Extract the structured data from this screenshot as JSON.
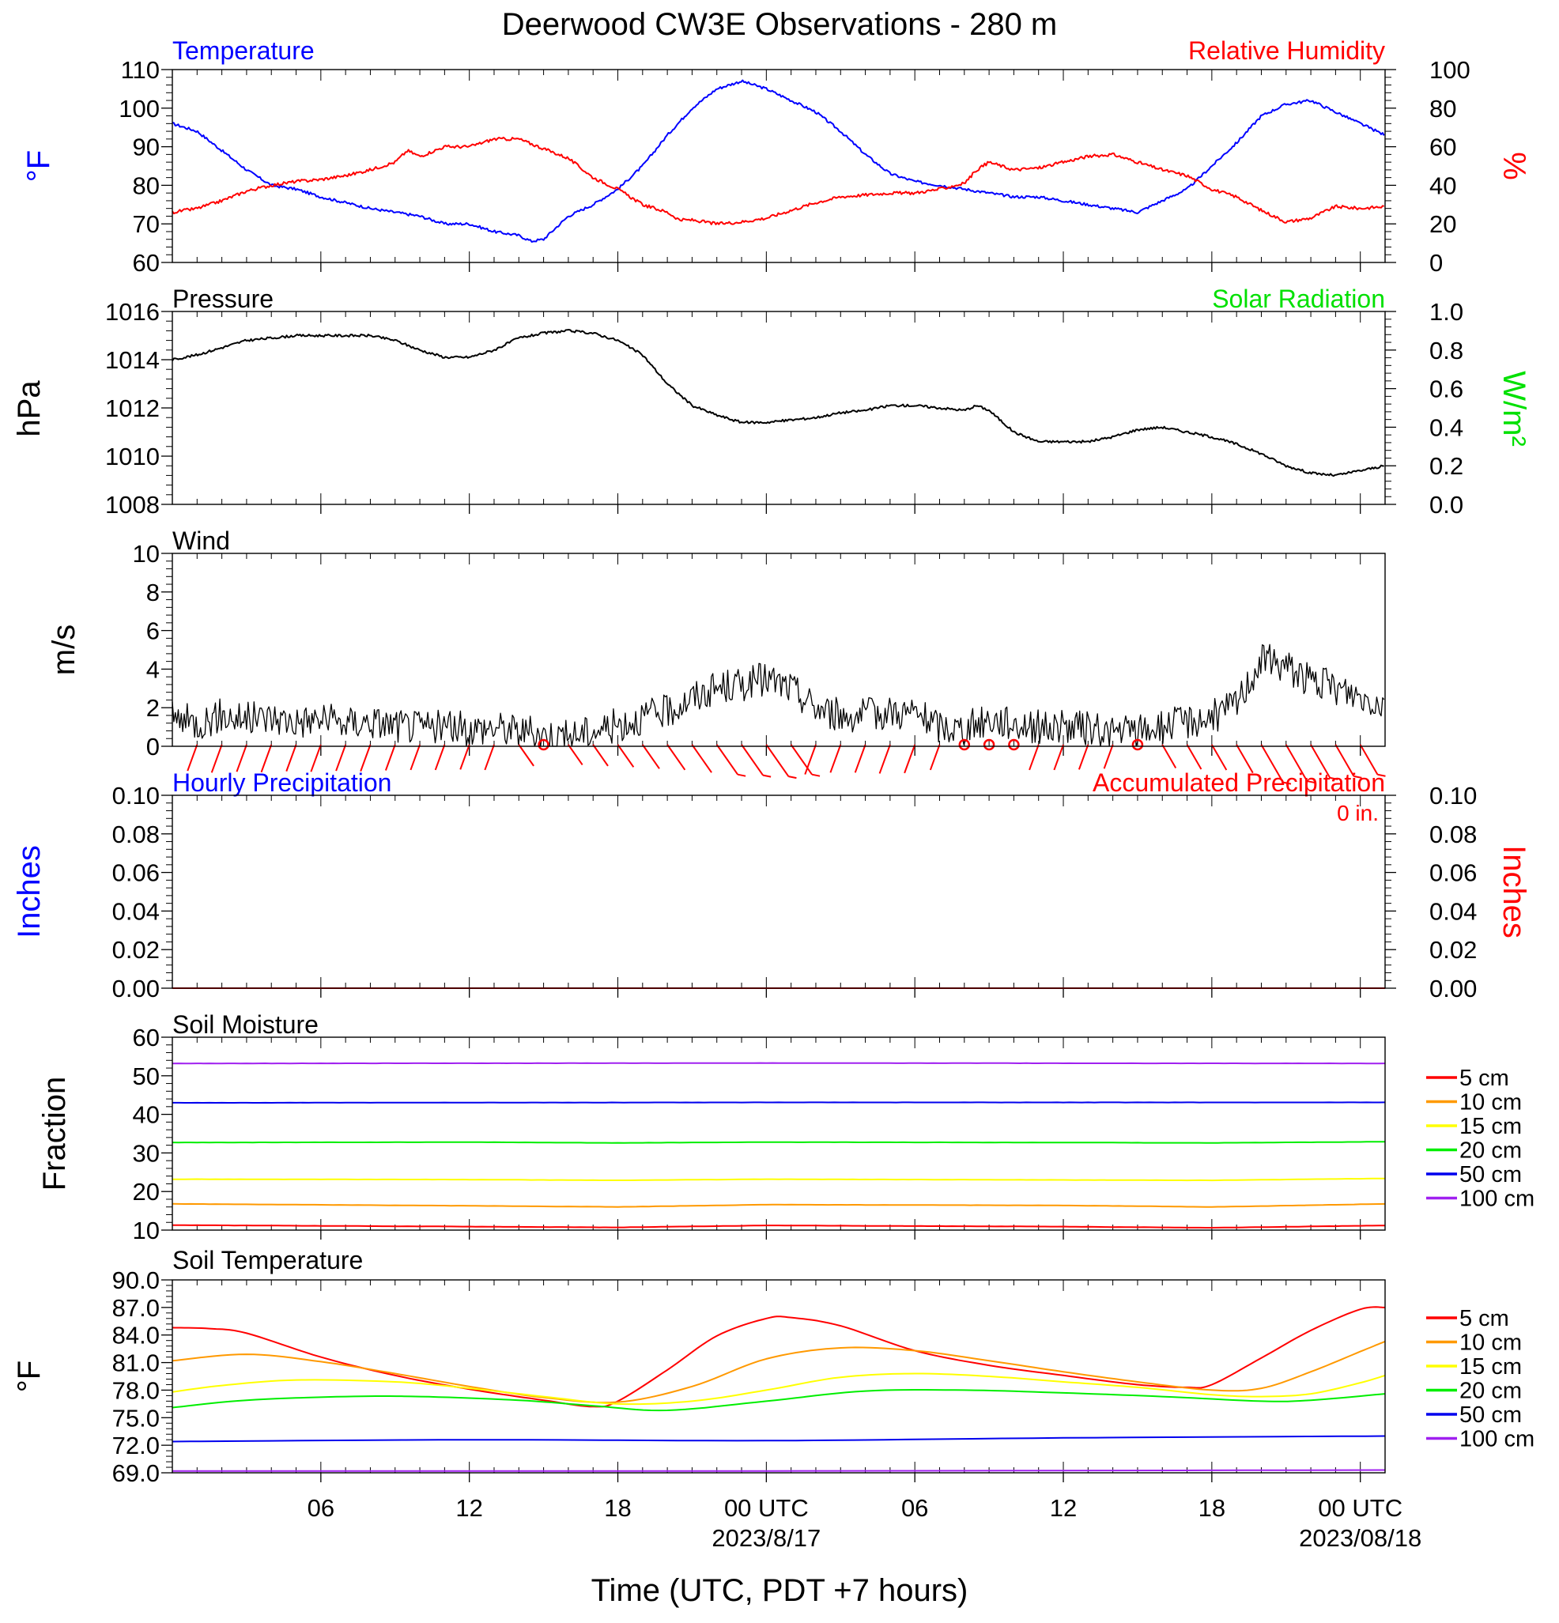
{
  "title": "Deerwood CW3E Observations - 280 m",
  "xlabel": "Time (UTC, PDT +7 hours)",
  "x_ticks": [
    {
      "hour": 6,
      "label": "06",
      "date": ""
    },
    {
      "hour": 12,
      "label": "12",
      "date": ""
    },
    {
      "hour": 18,
      "label": "18",
      "date": ""
    },
    {
      "hour": 24,
      "label": "00 UTC",
      "date": "2023/8/17"
    },
    {
      "hour": 30,
      "label": "06",
      "date": ""
    },
    {
      "hour": 36,
      "label": "12",
      "date": ""
    },
    {
      "hour": 42,
      "label": "18",
      "date": ""
    },
    {
      "hour": 48,
      "label": "00 UTC",
      "date": "2023/08/18"
    }
  ],
  "colors": {
    "temperature": "#0000ff",
    "humidity": "#ff0000",
    "pressure": "#000000",
    "solar": "#00e000",
    "wind_speed": "#000000",
    "wind_barbs": "#ff0000",
    "accumulated_precip": "#ff0000",
    "depth_colors": [
      "#ff0000",
      "#ff9900",
      "#ffff00",
      "#00ee00",
      "#0000ee",
      "#a020f0"
    ]
  },
  "panels": {
    "temp_rh": {
      "left_title": "Temperature",
      "right_title": "Relative Humidity",
      "left_axis_label": "°F",
      "right_axis_label": "%",
      "left_ticks": [
        "60",
        "70",
        "80",
        "90",
        "100",
        "110"
      ],
      "right_ticks": [
        "0",
        "20",
        "40",
        "60",
        "80",
        "100"
      ]
    },
    "pressure": {
      "left_title": "Pressure",
      "right_title": "Solar Radiation",
      "left_axis_label": "hPa",
      "right_axis_label": "W/m²",
      "left_ticks": [
        "1008",
        "1010",
        "1012",
        "1014",
        "1016"
      ],
      "right_ticks": [
        "0.0",
        "0.2",
        "0.4",
        "0.6",
        "0.8",
        "1.0"
      ]
    },
    "wind": {
      "left_title": "Wind",
      "left_axis_label": "m/s",
      "left_ticks": [
        "0",
        "2",
        "4",
        "6",
        "8",
        "10"
      ]
    },
    "precip": {
      "left_title": "Hourly Precipitation",
      "right_title": "Accumulated Precipitation",
      "total_note": "0 in.",
      "left_axis_label": "Inches",
      "right_axis_label": "Inches",
      "left_ticks": [
        "0.00",
        "0.02",
        "0.04",
        "0.06",
        "0.08",
        "0.10"
      ],
      "right_ticks": [
        "0.00",
        "0.02",
        "0.04",
        "0.06",
        "0.08",
        "0.10"
      ]
    },
    "soil_moisture": {
      "left_title": "Soil Moisture",
      "left_axis_label": "Fraction",
      "left_ticks": [
        "10",
        "20",
        "30",
        "40",
        "50",
        "60"
      ],
      "legend": [
        "5 cm",
        "10 cm",
        "15 cm",
        "20 cm",
        "50 cm",
        "100 cm"
      ]
    },
    "soil_temperature": {
      "left_title": "Soil Temperature",
      "left_axis_label": "°F",
      "left_ticks": [
        "69.0",
        "72.0",
        "75.0",
        "78.0",
        "81.0",
        "84.0",
        "87.0",
        "90.0"
      ],
      "legend": [
        "5 cm",
        "10 cm",
        "15 cm",
        "20 cm",
        "50 cm",
        "100 cm"
      ]
    }
  },
  "chart_data": [
    {
      "type": "line",
      "title": "Temperature / Relative Humidity",
      "x_unit": "hours since 2023-08-16 00 UTC",
      "xlim": [
        0,
        49
      ],
      "ylim": [
        60,
        110
      ],
      "y2lim": [
        0,
        100
      ],
      "series": [
        {
          "name": "Temperature",
          "axis": "left",
          "x": [
            0,
            1,
            2,
            3,
            4,
            5,
            6,
            8,
            10,
            11,
            12,
            13,
            14,
            14.5,
            15,
            16,
            17,
            18,
            19,
            20,
            21,
            22,
            23,
            24,
            25,
            26,
            27,
            28,
            29,
            30,
            31,
            32,
            33,
            34,
            35,
            36,
            37,
            38,
            39,
            40,
            41,
            42,
            43,
            44,
            45,
            46,
            47,
            48,
            49
          ],
          "y": [
            96,
            94,
            89,
            84,
            80,
            79,
            77,
            74,
            72,
            70,
            70,
            68,
            67,
            65.5,
            66,
            72,
            75,
            79,
            85,
            93,
            100,
            105,
            107,
            105,
            102,
            99,
            94,
            88,
            83,
            81,
            80,
            79,
            78,
            77,
            77,
            76,
            75,
            74,
            73,
            76,
            79,
            85,
            91,
            98,
            101,
            102,
            99,
            96,
            93
          ]
        },
        {
          "name": "Relative Humidity",
          "axis": "right",
          "x": [
            0,
            1,
            2,
            3,
            4,
            5,
            6,
            7,
            8,
            9,
            9.5,
            10,
            11,
            12,
            13,
            14,
            15,
            16,
            17,
            18,
            19,
            20,
            20.5,
            21,
            22,
            23,
            24,
            25,
            26,
            27,
            28,
            29,
            30,
            31,
            32,
            32.5,
            33,
            34,
            35,
            36,
            37,
            38,
            39,
            40,
            41,
            42,
            43,
            44,
            45,
            46,
            47,
            48,
            49
          ],
          "y": [
            26,
            28,
            32,
            37,
            40,
            42,
            43,
            45,
            48,
            52,
            58,
            55,
            60,
            60,
            64,
            64,
            59,
            54,
            44,
            38,
            30,
            26,
            22,
            22,
            20,
            21,
            23,
            27,
            31,
            34,
            35,
            36,
            36,
            38,
            41,
            48,
            52,
            48,
            49,
            52,
            55,
            56,
            52,
            48,
            45,
            38,
            34,
            27,
            21,
            23,
            29,
            28,
            29
          ]
        }
      ]
    },
    {
      "type": "line",
      "title": "Pressure / Solar Radiation",
      "x_unit": "hours since 2023-08-16 00 UTC",
      "xlim": [
        0,
        49
      ],
      "ylim": [
        1008,
        1016
      ],
      "y2lim": [
        0,
        1
      ],
      "series": [
        {
          "name": "Pressure",
          "axis": "left",
          "x": [
            0,
            1,
            2,
            3,
            4,
            5,
            6,
            7,
            8,
            9,
            10,
            11,
            12,
            13,
            14,
            15,
            16,
            17,
            18,
            19,
            20,
            21,
            22,
            23,
            24,
            25,
            26,
            27,
            28,
            29,
            30,
            31,
            32,
            32.5,
            33,
            34,
            35,
            36,
            37,
            38,
            39,
            40,
            41,
            42,
            43,
            44,
            45,
            46,
            47,
            48,
            49
          ],
          "y": [
            1014.0,
            1014.2,
            1014.5,
            1014.8,
            1014.9,
            1015.0,
            1015.0,
            1015.0,
            1015.0,
            1014.8,
            1014.4,
            1014.1,
            1014.1,
            1014.4,
            1014.9,
            1015.1,
            1015.2,
            1015.1,
            1014.8,
            1014.2,
            1013.0,
            1012.1,
            1011.7,
            1011.4,
            1011.4,
            1011.5,
            1011.6,
            1011.8,
            1011.9,
            1012.1,
            1012.1,
            1012.0,
            1011.9,
            1012.1,
            1011.9,
            1011.0,
            1010.6,
            1010.6,
            1010.6,
            1010.8,
            1011.1,
            1011.2,
            1011.0,
            1010.8,
            1010.5,
            1010.1,
            1009.6,
            1009.3,
            1009.2,
            1009.4,
            1009.6
          ]
        },
        {
          "name": "Solar Radiation",
          "axis": "right",
          "x": [],
          "y": []
        }
      ]
    },
    {
      "type": "line",
      "title": "Wind",
      "x_unit": "hours since 2023-08-16 00 UTC",
      "xlim": [
        0,
        49
      ],
      "ylim": [
        0,
        10
      ],
      "series": [
        {
          "name": "Wind speed",
          "x": [
            0,
            1,
            2,
            3,
            4,
            5,
            6,
            7,
            8,
            9,
            10,
            11,
            12,
            13,
            14,
            15,
            16,
            17,
            18,
            19,
            20,
            21,
            22,
            23,
            24,
            25,
            26,
            27,
            28,
            29,
            30,
            31,
            32,
            33,
            34,
            35,
            36,
            37,
            38,
            39,
            40,
            41,
            42,
            43,
            44,
            45,
            46,
            47,
            48,
            49
          ],
          "y": [
            1.5,
            1.2,
            1.6,
            1.4,
            1.5,
            1.3,
            1.4,
            1.2,
            1.3,
            1.1,
            1.0,
            1.0,
            0.9,
            1.0,
            0.8,
            0.6,
            0.5,
            0.8,
            1.1,
            1.5,
            1.8,
            2.5,
            3.0,
            3.2,
            3.5,
            3.0,
            2.0,
            1.6,
            1.6,
            1.8,
            1.7,
            1.0,
            0.9,
            1.4,
            1.2,
            1.0,
            1.0,
            0.9,
            0.7,
            0.8,
            1.0,
            1.3,
            1.5,
            2.2,
            4.5,
            4.2,
            3.4,
            3.0,
            2.6,
            2.2
          ]
        }
      ],
      "calm_hours": [
        15,
        32,
        33,
        34,
        39
      ]
    },
    {
      "type": "bar",
      "title": "Hourly / Accumulated Precipitation",
      "x_unit": "hours since 2023-08-16 00 UTC",
      "xlim": [
        0,
        49
      ],
      "ylim": [
        0,
        0.1
      ],
      "series": [
        {
          "name": "Hourly Precipitation",
          "x": [
            0,
            49
          ],
          "y": [
            0,
            0
          ]
        },
        {
          "name": "Accumulated Precipitation",
          "x": [
            0,
            49
          ],
          "y": [
            0,
            0
          ]
        }
      ]
    },
    {
      "type": "line",
      "title": "Soil Moisture",
      "x_unit": "hours since 2023-08-16 00 UTC",
      "xlim": [
        0,
        49
      ],
      "ylim": [
        10,
        60
      ],
      "series": [
        {
          "name": "5 cm",
          "x": [
            0,
            12,
            18,
            24,
            36,
            42,
            49
          ],
          "y": [
            11.3,
            10.9,
            10.7,
            11.2,
            10.9,
            10.6,
            11.2
          ]
        },
        {
          "name": "10 cm",
          "x": [
            0,
            12,
            18,
            24,
            36,
            42,
            49
          ],
          "y": [
            16.8,
            16.3,
            16.0,
            16.6,
            16.4,
            16.0,
            16.8
          ]
        },
        {
          "name": "15 cm",
          "x": [
            0,
            12,
            18,
            24,
            36,
            42,
            49
          ],
          "y": [
            23.2,
            23.1,
            22.9,
            23.2,
            23.0,
            22.9,
            23.4
          ]
        },
        {
          "name": "20 cm",
          "x": [
            0,
            12,
            18,
            24,
            36,
            42,
            49
          ],
          "y": [
            32.7,
            32.8,
            32.6,
            32.8,
            32.7,
            32.6,
            32.9
          ]
        },
        {
          "name": "50 cm",
          "x": [
            0,
            24,
            49
          ],
          "y": [
            43.0,
            43.1,
            43.1
          ]
        },
        {
          "name": "100 cm",
          "x": [
            0,
            24,
            49
          ],
          "y": [
            53.2,
            53.3,
            53.2
          ]
        }
      ]
    },
    {
      "type": "line",
      "title": "Soil Temperature",
      "x_unit": "hours since 2023-08-16 00 UTC",
      "xlim": [
        0,
        49
      ],
      "ylim": [
        69,
        90
      ],
      "series": [
        {
          "name": "5 cm",
          "x": [
            0,
            1.5,
            3,
            6,
            9,
            12,
            15,
            17,
            18,
            20,
            22,
            24,
            25,
            27,
            30,
            33,
            36,
            39,
            41,
            42,
            44,
            46,
            48,
            49
          ],
          "y": [
            84.8,
            84.7,
            84.2,
            81.6,
            79.6,
            78.1,
            76.9,
            76.2,
            76.8,
            80.2,
            83.9,
            85.8,
            85.9,
            85.0,
            82.3,
            80.7,
            79.6,
            78.6,
            78.3,
            78.6,
            81.5,
            84.5,
            86.8,
            87.0
          ]
        },
        {
          "name": "10 cm",
          "x": [
            0,
            3,
            6,
            9,
            12,
            15,
            18,
            21,
            24,
            27,
            30,
            33,
            36,
            39,
            42,
            44,
            46,
            48,
            49
          ],
          "y": [
            81.2,
            81.9,
            81.1,
            79.8,
            78.4,
            77.2,
            76.7,
            78.4,
            81.4,
            82.6,
            82.3,
            81.2,
            80.0,
            78.9,
            78.0,
            78.2,
            80.0,
            82.2,
            83.3
          ]
        },
        {
          "name": "15 cm",
          "x": [
            0,
            2,
            5,
            9,
            12,
            15,
            18,
            21,
            24,
            27,
            30,
            33,
            36,
            39,
            42,
            44,
            46,
            48,
            49
          ],
          "y": [
            77.8,
            78.5,
            79.1,
            78.9,
            78.2,
            77.3,
            76.5,
            76.8,
            78.0,
            79.4,
            79.8,
            79.5,
            78.9,
            78.3,
            77.5,
            77.3,
            77.6,
            78.8,
            79.6
          ]
        },
        {
          "name": "20 cm",
          "x": [
            0,
            3,
            7,
            10,
            14,
            17,
            20,
            24,
            28,
            32,
            36,
            40,
            44,
            46,
            49
          ],
          "y": [
            76.1,
            76.9,
            77.3,
            77.3,
            76.9,
            76.3,
            75.8,
            76.8,
            77.9,
            78.0,
            77.7,
            77.3,
            76.8,
            76.9,
            77.6
          ]
        },
        {
          "name": "50 cm",
          "x": [
            0,
            12,
            24,
            36,
            49
          ],
          "y": [
            72.4,
            72.6,
            72.5,
            72.8,
            73.0
          ]
        },
        {
          "name": "100 cm",
          "x": [
            0,
            24,
            49
          ],
          "y": [
            69.2,
            69.2,
            69.3
          ]
        }
      ]
    }
  ]
}
